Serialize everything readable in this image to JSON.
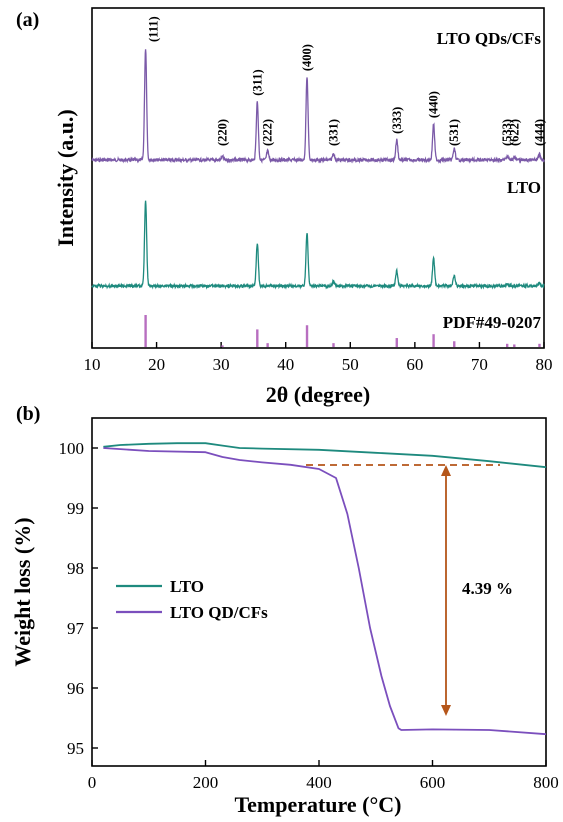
{
  "chart_data": [
    {
      "panel_label": "(a)",
      "type": "line",
      "xlabel": "2θ (degree)",
      "ylabel": "Intensity (a.u.)",
      "xlim": [
        10,
        80
      ],
      "x_ticks": [
        10,
        20,
        30,
        40,
        50,
        60,
        70,
        80
      ],
      "series": [
        {
          "name": "LTO QDs/CFs",
          "color": "#7b5aa8",
          "peaks": [
            [
              18.3,
              100
            ],
            [
              30.2,
              3
            ],
            [
              35.6,
              52
            ],
            [
              37.2,
              8
            ],
            [
              43.3,
              74
            ],
            [
              47.4,
              6
            ],
            [
              57.2,
              18
            ],
            [
              62.9,
              32
            ],
            [
              66.1,
              10
            ],
            [
              74.3,
              4
            ],
            [
              75.4,
              3
            ],
            [
              79.3,
              5
            ]
          ],
          "peak_labels": [
            "(111)",
            "(220)",
            "(311)",
            "(222)",
            "(400)",
            "(331)",
            "(333)",
            "(440)",
            "(531)",
            "(533)",
            "(622)",
            "(444)"
          ]
        },
        {
          "name": "LTO",
          "color": "#1e8a7e",
          "peaks": [
            [
              18.3,
              100
            ],
            [
              35.6,
              50
            ],
            [
              43.3,
              62
            ],
            [
              47.4,
              6
            ],
            [
              57.2,
              18
            ],
            [
              62.9,
              32
            ],
            [
              66.1,
              12
            ],
            [
              74.3,
              3
            ],
            [
              79.3,
              4
            ]
          ]
        },
        {
          "name": "PDF#49-0207",
          "color": "#b86ec0",
          "type": "stick",
          "peaks": [
            [
              18.3,
              100
            ],
            [
              30.2,
              5
            ],
            [
              35.6,
              55
            ],
            [
              37.2,
              12
            ],
            [
              43.3,
              68
            ],
            [
              47.4,
              12
            ],
            [
              57.2,
              28
            ],
            [
              62.9,
              40
            ],
            [
              66.1,
              18
            ],
            [
              74.3,
              10
            ],
            [
              75.4,
              8
            ],
            [
              79.3,
              10
            ]
          ]
        }
      ]
    },
    {
      "panel_label": "(b)",
      "type": "line",
      "xlabel": "Temperature (°C)",
      "ylabel": "Weight loss (%)",
      "xlim": [
        0,
        800
      ],
      "ylim": [
        94.7,
        100.5
      ],
      "x_ticks": [
        0,
        200,
        400,
        600,
        800
      ],
      "y_ticks": [
        95,
        96,
        97,
        98,
        99,
        100
      ],
      "legend_position": "middle-left",
      "annotation": "4.39 %",
      "series": [
        {
          "name": "LTO",
          "color": "#1e8a7e",
          "x": [
            20,
            50,
            100,
            150,
            200,
            230,
            260,
            300,
            400,
            500,
            600,
            700,
            800
          ],
          "y": [
            100.02,
            100.05,
            100.07,
            100.08,
            100.08,
            100.04,
            100.0,
            99.99,
            99.97,
            99.92,
            99.87,
            99.78,
            99.68
          ]
        },
        {
          "name": "LTO QD/CFs",
          "color": "#7b4fbd",
          "x": [
            20,
            100,
            200,
            230,
            260,
            300,
            350,
            400,
            430,
            450,
            470,
            490,
            510,
            525,
            540,
            545,
            600,
            700,
            800
          ],
          "y": [
            100.0,
            99.95,
            99.93,
            99.85,
            99.8,
            99.76,
            99.72,
            99.65,
            99.5,
            98.9,
            98.0,
            97.0,
            96.2,
            95.7,
            95.33,
            95.3,
            95.31,
            95.3,
            95.23
          ]
        }
      ]
    }
  ]
}
